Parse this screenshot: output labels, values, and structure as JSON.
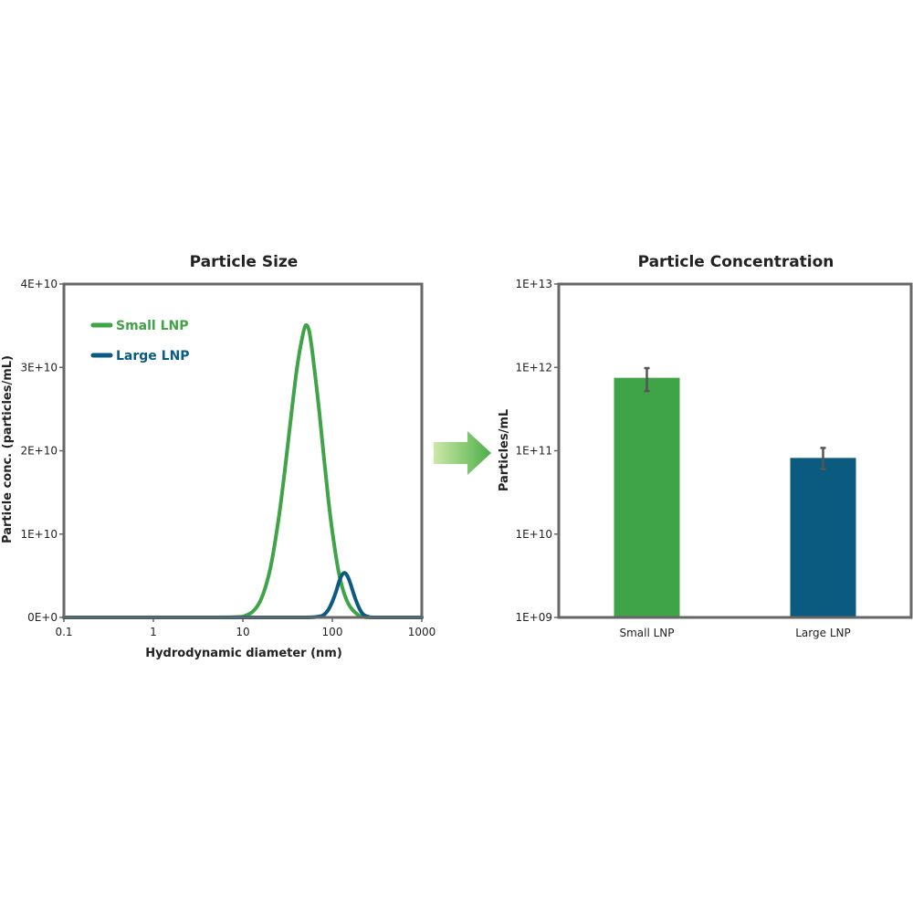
{
  "colors": {
    "small": "#3fa447",
    "large": "#0b5a80",
    "axis": "#666666",
    "error_bar": "#555555",
    "arrow_light": "#cde8a8",
    "arrow_dark": "#4cae47"
  },
  "chart_data": [
    {
      "type": "line",
      "title": "Particle Size",
      "xlabel": "Hydrodynamic diameter (nm)",
      "ylabel": "Particle conc. (particles/mL)",
      "xscale": "log",
      "xlim": [
        0.1,
        1000
      ],
      "ylim": [
        0,
        40000000000
      ],
      "xticks": [
        0.1,
        1,
        10,
        100,
        1000
      ],
      "xtick_labels": [
        "0.1",
        "1",
        "10",
        "100",
        "1000"
      ],
      "yticks": [
        0,
        10000000000,
        20000000000,
        30000000000,
        40000000000
      ],
      "ytick_labels": [
        "0E+0",
        "1E+10",
        "2E+10",
        "3E+10",
        "4E+10"
      ],
      "legend_position": "top-left",
      "series": [
        {
          "name": "Small LNP",
          "x": [
            0.1,
            1,
            5,
            10,
            15,
            20,
            25,
            30,
            35,
            40,
            45,
            50,
            55,
            60,
            70,
            80,
            90,
            100,
            120,
            150,
            200,
            250,
            300,
            1000
          ],
          "y": [
            0,
            0,
            0,
            100000000,
            1600000000,
            5600000000,
            11700000000,
            18400000000,
            24600000000,
            29700000000,
            33000000000,
            35000000000,
            34400000000,
            31700000000,
            25600000000,
            19500000000,
            14300000000,
            10300000000,
            5000000000,
            1700000000,
            200000000,
            0,
            0,
            0
          ]
        },
        {
          "name": "Large LNP",
          "x": [
            0.1,
            1,
            10,
            50,
            70,
            80,
            90,
            100,
            110,
            120,
            130,
            140,
            150,
            160,
            180,
            200,
            220,
            250,
            300,
            1000
          ],
          "y": [
            0,
            0,
            0,
            0,
            100000000,
            300000000,
            900000000,
            1900000000,
            3100000000,
            4400000000,
            5200000000,
            5300000000,
            4800000000,
            4000000000,
            2300000000,
            1100000000,
            400000000,
            100000000,
            0,
            0
          ]
        }
      ]
    },
    {
      "type": "bar",
      "title": "Particle Concentration",
      "xlabel": "",
      "ylabel": "Particles/mL",
      "yscale": "log",
      "ylim": [
        1000000000,
        10000000000000
      ],
      "yticks": [
        1000000000,
        10000000000,
        100000000000,
        1000000000000,
        10000000000000
      ],
      "ytick_labels": [
        "1E+09",
        "1E+10",
        "1E+11",
        "1E+12",
        "1E+13"
      ],
      "categories": [
        "Small LNP",
        "Large LNP"
      ],
      "values": [
        750000000000,
        82000000000
      ],
      "error_low": [
        520000000000,
        60000000000
      ],
      "error_high": [
        980000000000,
        108000000000
      ]
    }
  ]
}
